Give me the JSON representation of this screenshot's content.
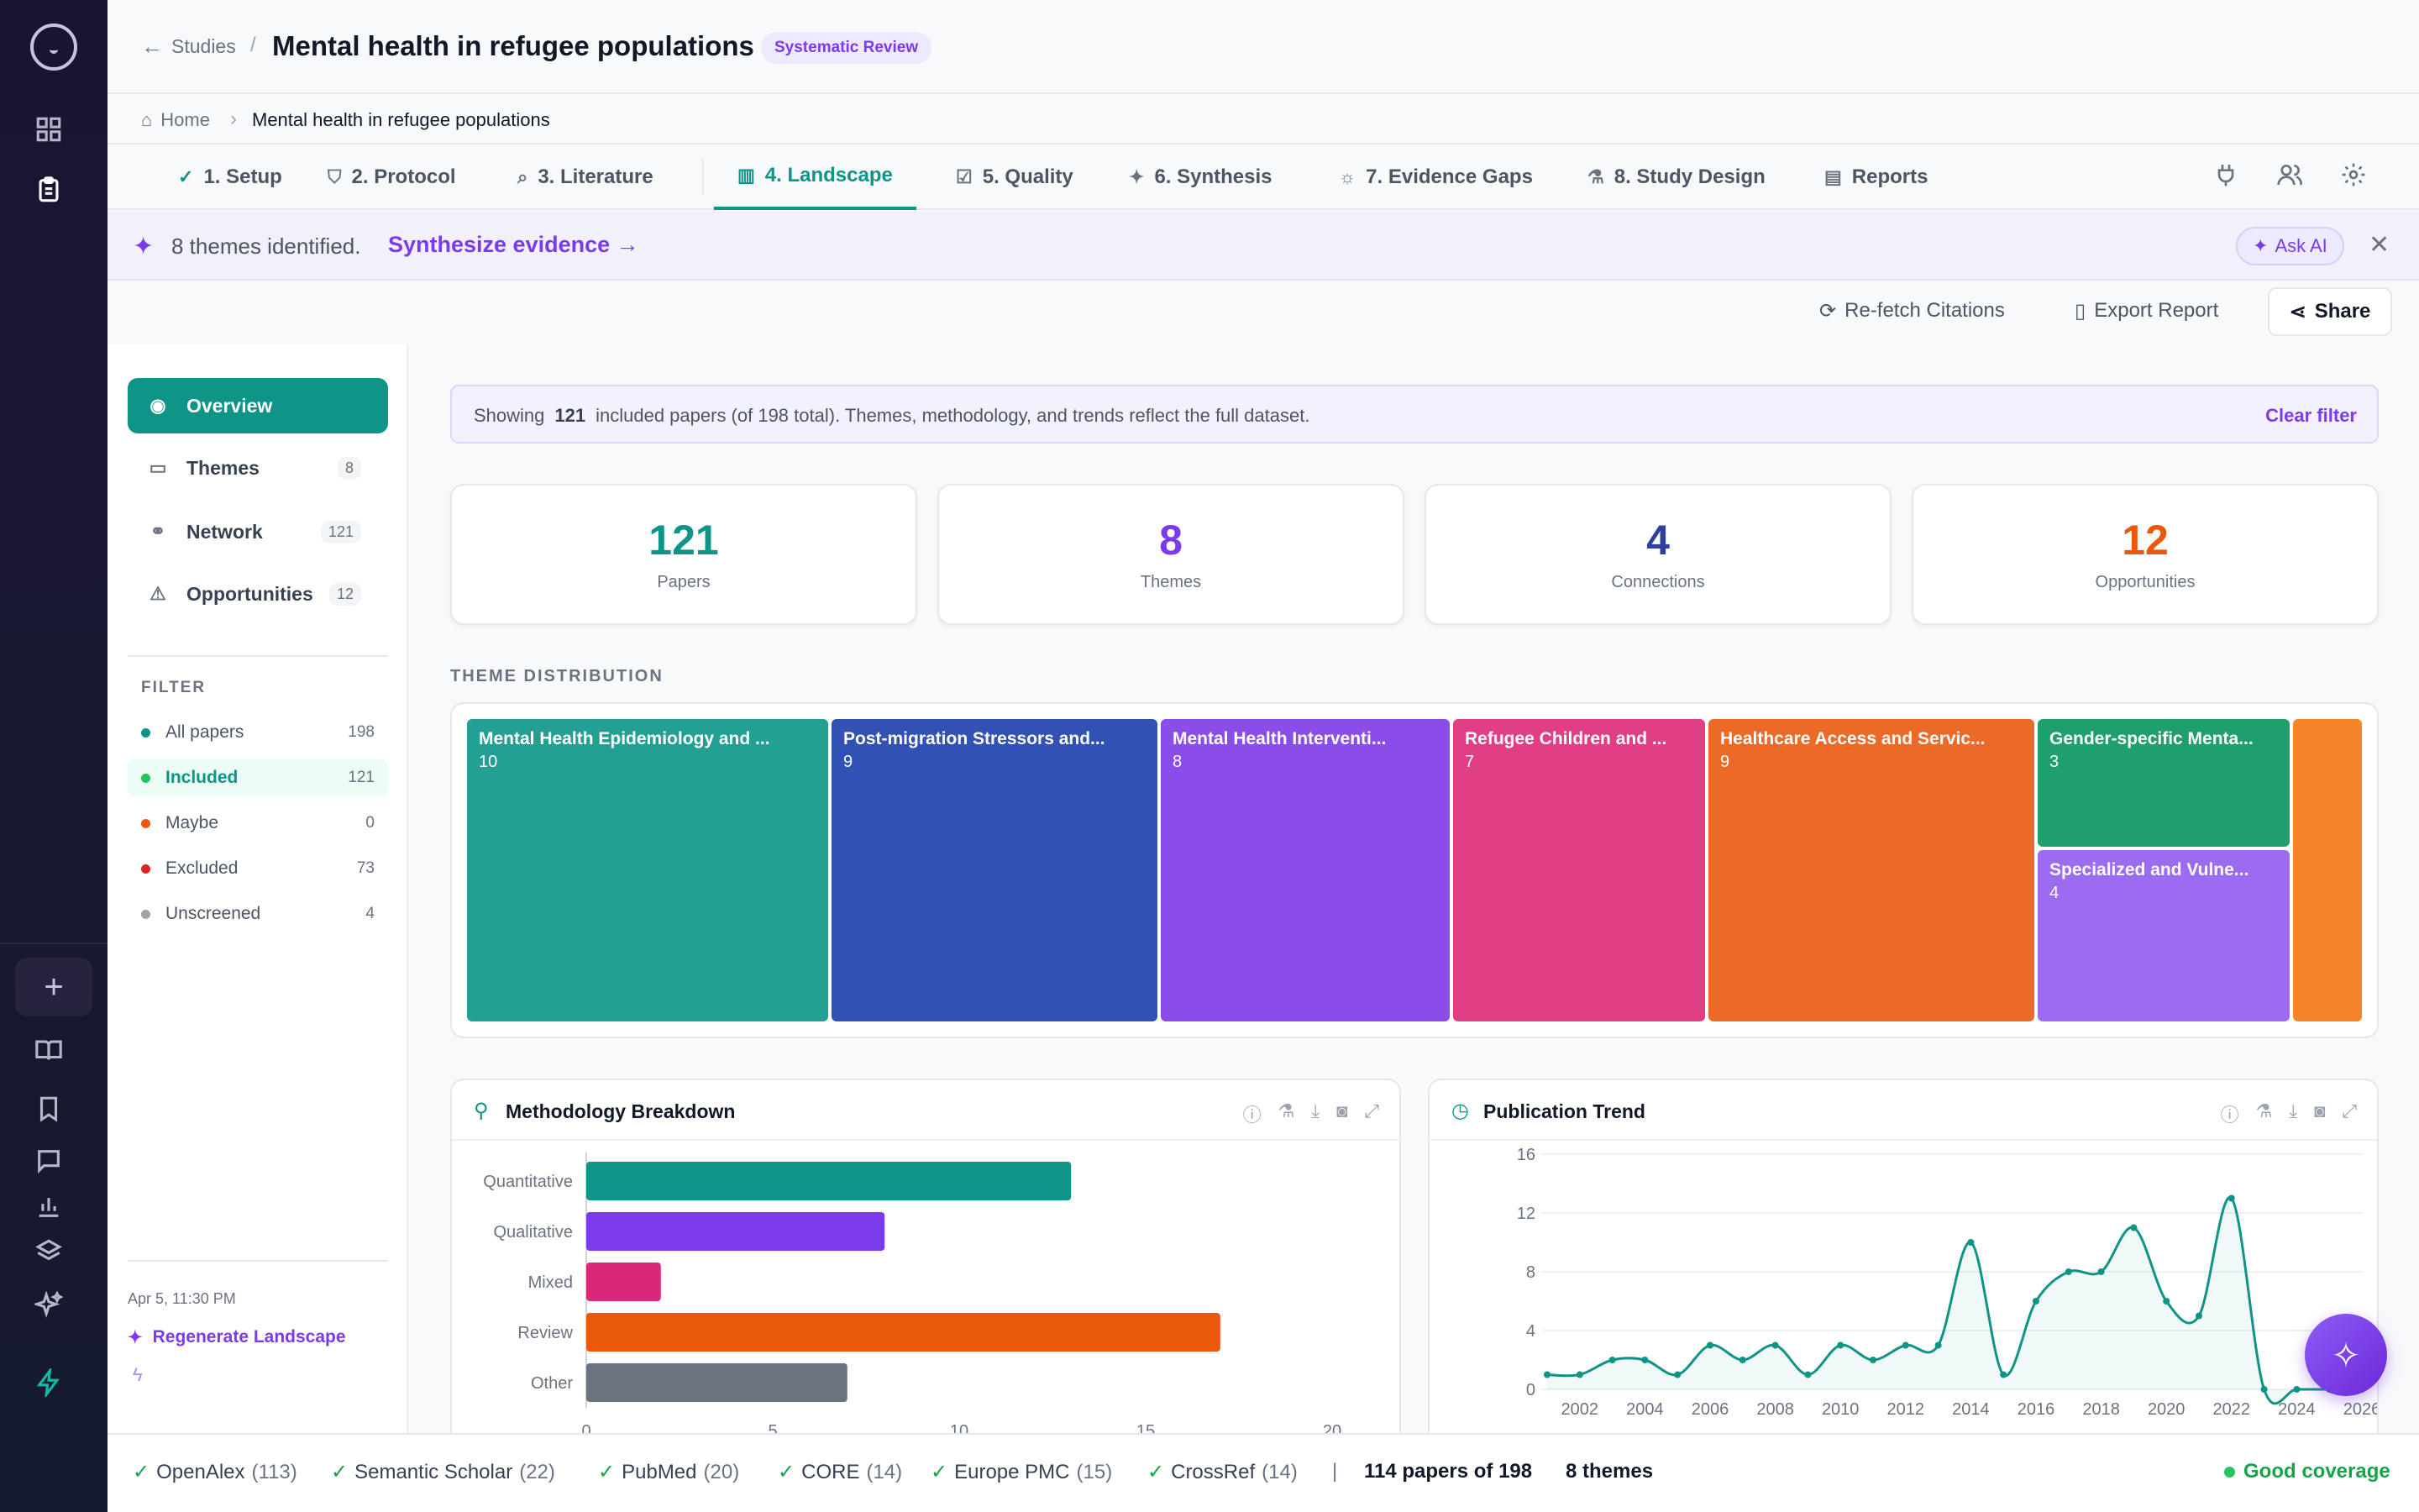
{
  "header": {
    "back_label": "Studies",
    "separator": "/",
    "title": "Mental health in refugee populations",
    "badge": "Systematic Review"
  },
  "breadcrumb": {
    "home": "Home",
    "current": "Mental health in refugee populations"
  },
  "tabs": [
    {
      "label": "1. Setup",
      "icon": "check-circle-icon"
    },
    {
      "label": "2. Protocol",
      "icon": "shield-icon"
    },
    {
      "label": "3. Literature",
      "icon": "search-icon"
    },
    {
      "label": "4. Landscape",
      "icon": "map-icon"
    },
    {
      "label": "5. Quality",
      "icon": "check-square-icon"
    },
    {
      "label": "6. Synthesis",
      "icon": "sparkles-icon"
    },
    {
      "label": "7. Evidence Gaps",
      "icon": "lightbulb-icon"
    },
    {
      "label": "8. Study Design",
      "icon": "flask-icon"
    },
    {
      "label": "Reports",
      "icon": "clipboard-icon"
    }
  ],
  "banner": {
    "message": "8 themes identified.",
    "cta": "Synthesize evidence →",
    "ask_ai": "Ask AI",
    "close": "✕"
  },
  "actions": {
    "refetch": "Re-fetch Citations",
    "export": "Export Report",
    "share": "Share"
  },
  "sidebar": {
    "nav": [
      {
        "label": "Overview",
        "count": ""
      },
      {
        "label": "Themes",
        "count": "8"
      },
      {
        "label": "Network",
        "count": "121"
      },
      {
        "label": "Opportunities",
        "count": "12"
      }
    ],
    "filter_label": "FILTER",
    "filters": [
      {
        "label": "All papers",
        "count": "198",
        "color": "#0f9488"
      },
      {
        "label": "Included",
        "count": "121",
        "color": "#22c55e"
      },
      {
        "label": "Maybe",
        "count": "0",
        "color": "#ea580c"
      },
      {
        "label": "Excluded",
        "count": "73",
        "color": "#dc2626"
      },
      {
        "label": "Unscreened",
        "count": "4",
        "color": "#9ca3af"
      }
    ],
    "timestamp": "Apr 5, 11:30 PM",
    "regenerate": "Regenerate Landscape"
  },
  "filterbar": {
    "prefix": "Showing",
    "count": "121",
    "suffix": "included papers (of 198 total). Themes, methodology, and trends reflect the full dataset.",
    "clear": "Clear filter"
  },
  "stats": [
    {
      "value": "121",
      "label": "Papers",
      "color": "#0f9488"
    },
    {
      "value": "8",
      "label": "Themes",
      "color": "#7c3aed"
    },
    {
      "value": "4",
      "label": "Connections",
      "color": "#2e3f9e"
    },
    {
      "value": "12",
      "label": "Opportunities",
      "color": "#ea580c"
    }
  ],
  "theme_section": "THEME DISTRIBUTION",
  "themes": [
    {
      "name": "Mental Health Epidemiology and ...",
      "count": "10",
      "color": "#23a093"
    },
    {
      "name": "Post-migration Stressors and...",
      "count": "9",
      "color": "#3151b5"
    },
    {
      "name": "Mental Health Interventi...",
      "count": "8",
      "color": "#8b4de8"
    },
    {
      "name": "Refugee Children and ...",
      "count": "7",
      "color": "#e03e85"
    },
    {
      "name": "Healthcare Access and Servic...",
      "count": "9",
      "color": "#ec6a28"
    },
    {
      "name": "Gender-specific Menta...",
      "count": "3",
      "color": "#1f9e6e"
    },
    {
      "name": "Specialized and Vulne...",
      "count": "4",
      "color": "#9b6cf0"
    },
    {
      "name": "",
      "count": "",
      "color": "#f5832a"
    }
  ],
  "methodology": {
    "title": "Methodology Breakdown",
    "chart_data": {
      "type": "bar",
      "orientation": "horizontal",
      "categories": [
        "Quantitative",
        "Qualitative",
        "Mixed",
        "Review",
        "Other"
      ],
      "values": [
        13,
        8,
        2,
        17,
        7
      ],
      "colors": [
        "#0f9488",
        "#7c3aed",
        "#db2777",
        "#ea580c",
        "#6b7280"
      ],
      "xlim": [
        0,
        20
      ],
      "xticks": [
        "0",
        "5",
        "10",
        "15",
        "20"
      ],
      "grid": false
    }
  },
  "trend": {
    "title": "Publication Trend",
    "chart_data": {
      "type": "line",
      "x": [
        2001,
        2002,
        2003,
        2004,
        2005,
        2006,
        2007,
        2008,
        2009,
        2010,
        2011,
        2012,
        2013,
        2014,
        2015,
        2016,
        2017,
        2018,
        2019,
        2020,
        2021,
        2022,
        2023,
        2024,
        2025,
        2026
      ],
      "values": [
        1,
        1,
        2,
        2,
        1,
        3,
        2,
        3,
        1,
        3,
        2,
        3,
        3,
        10,
        1,
        6,
        8,
        8,
        11,
        6,
        5,
        13,
        0,
        0,
        0,
        0
      ],
      "ylim": [
        0,
        16
      ],
      "yticks": [
        "0",
        "4",
        "8",
        "12",
        "16"
      ],
      "xticks": [
        "2002",
        "2004",
        "2006",
        "2008",
        "2010",
        "2012",
        "2014",
        "2016",
        "2018",
        "2020",
        "2022",
        "2024",
        "2026"
      ],
      "color": "#0f9488"
    }
  },
  "footer": {
    "sources": [
      {
        "name": "OpenAlex",
        "count": "(113)"
      },
      {
        "name": "Semantic Scholar",
        "count": "(22)"
      },
      {
        "name": "PubMed",
        "count": "(20)"
      },
      {
        "name": "CORE",
        "count": "(14)"
      },
      {
        "name": "Europe PMC",
        "count": "(15)"
      },
      {
        "name": "CrossRef",
        "count": "(14)"
      }
    ],
    "divider": "|",
    "summary": "114 papers of 198",
    "themes": "8 themes",
    "coverage": "Good coverage"
  }
}
